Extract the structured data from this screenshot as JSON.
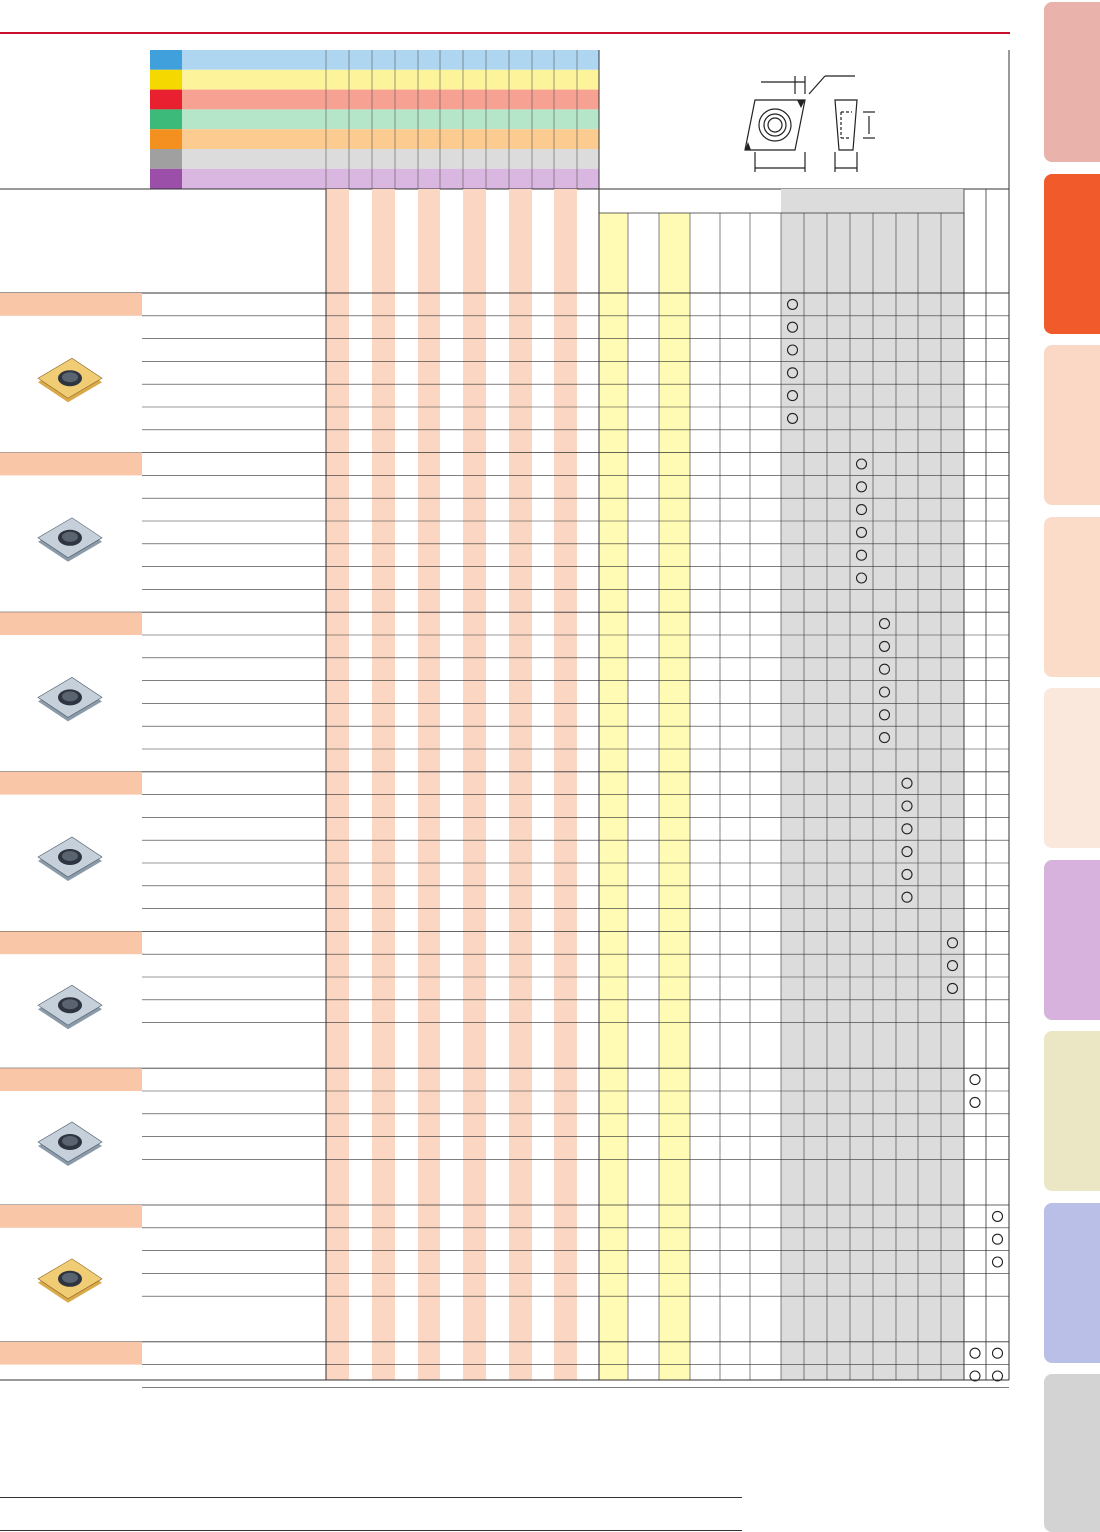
{
  "colors": {
    "top_rule": "#c8102e",
    "iso_p": "#3fa0dc",
    "iso_m": "#f5d800",
    "iso_k": "#e8202f",
    "iso_n": "#3cba7a",
    "iso_s": "#f39020",
    "iso_h": "#a0a0a0",
    "iso_o": "#9b4fa8",
    "iso_p_light": "#aed6f1",
    "iso_m_light": "#fdf39b",
    "iso_k_light": "#f6a192",
    "iso_n_light": "#b5e6c9",
    "iso_s_light": "#fbcb8f",
    "iso_h_light": "#dcdcdc",
    "iso_o_light": "#dab7e0",
    "stripe_salmon": "#fbd7c3",
    "stripe_yellow": "#fffbb5",
    "group_gray": "#dcdcdc",
    "section_header": "#f9c6a8",
    "grid_line": "#1a1a1a"
  },
  "iso_groups": [
    "iso-p",
    "iso-m",
    "iso-k",
    "iso-n",
    "iso-s",
    "iso-h",
    "iso-o"
  ],
  "side_tabs": [
    {
      "name": "tab-1",
      "color": "#e9b3ac"
    },
    {
      "name": "tab-2-active",
      "color": "#f15a2b"
    },
    {
      "name": "tab-3",
      "color": "#fbd8c5"
    },
    {
      "name": "tab-4",
      "color": "#fbdcc9"
    },
    {
      "name": "tab-5",
      "color": "#fbe8dc"
    },
    {
      "name": "tab-6",
      "color": "#d6b2dc"
    },
    {
      "name": "tab-7",
      "color": "#ebe6c3"
    },
    {
      "name": "tab-8",
      "color": "#b9bfe6"
    },
    {
      "name": "tab-9",
      "color": "#d3d3d3"
    }
  ],
  "insert_groups": [
    {
      "name": "insert-group-1",
      "rows": 7,
      "icon": "gold-insert-icon",
      "marks": [
        [
          6
        ],
        [
          6
        ],
        [
          6
        ],
        [
          6
        ],
        [
          6
        ],
        [
          6
        ],
        []
      ]
    },
    {
      "name": "insert-group-2",
      "rows": 7,
      "icon": "gray-insert-icon",
      "marks": [
        [
          9
        ],
        [
          9
        ],
        [
          9
        ],
        [
          9
        ],
        [
          9
        ],
        [
          9
        ],
        []
      ]
    },
    {
      "name": "insert-group-3",
      "rows": 7,
      "icon": "gray-insert-icon",
      "marks": [
        [
          10
        ],
        [
          10
        ],
        [
          10
        ],
        [
          10
        ],
        [
          10
        ],
        [
          10
        ],
        []
      ]
    },
    {
      "name": "insert-group-4",
      "rows": 7,
      "icon": "gray-insert-icon",
      "marks": [
        [
          11
        ],
        [
          11
        ],
        [
          11
        ],
        [
          11
        ],
        [
          11
        ],
        [
          11
        ],
        []
      ]
    },
    {
      "name": "insert-group-5",
      "rows": 5,
      "icon": "gray-insert-icon",
      "marks": [
        [
          13
        ],
        [
          13
        ],
        [
          13
        ],
        [],
        []
      ]
    },
    {
      "name": "insert-group-6",
      "rows": 5,
      "icon": "gray-insert-icon",
      "marks": [
        [
          14
        ],
        [
          14
        ],
        [],
        [],
        []
      ]
    },
    {
      "name": "insert-group-7",
      "rows": 5,
      "icon": "gold-insert-icon",
      "marks": [
        [
          15
        ],
        [
          15
        ],
        [
          15
        ],
        [],
        []
      ]
    },
    {
      "name": "insert-group-8",
      "rows": 5,
      "icon": "gold-insert-icon",
      "marks": [
        [
          14,
          15
        ],
        [
          14,
          15
        ],
        [],
        [],
        []
      ]
    }
  ],
  "diagram": {
    "icon": "insert-dimension-diagram-icon"
  }
}
